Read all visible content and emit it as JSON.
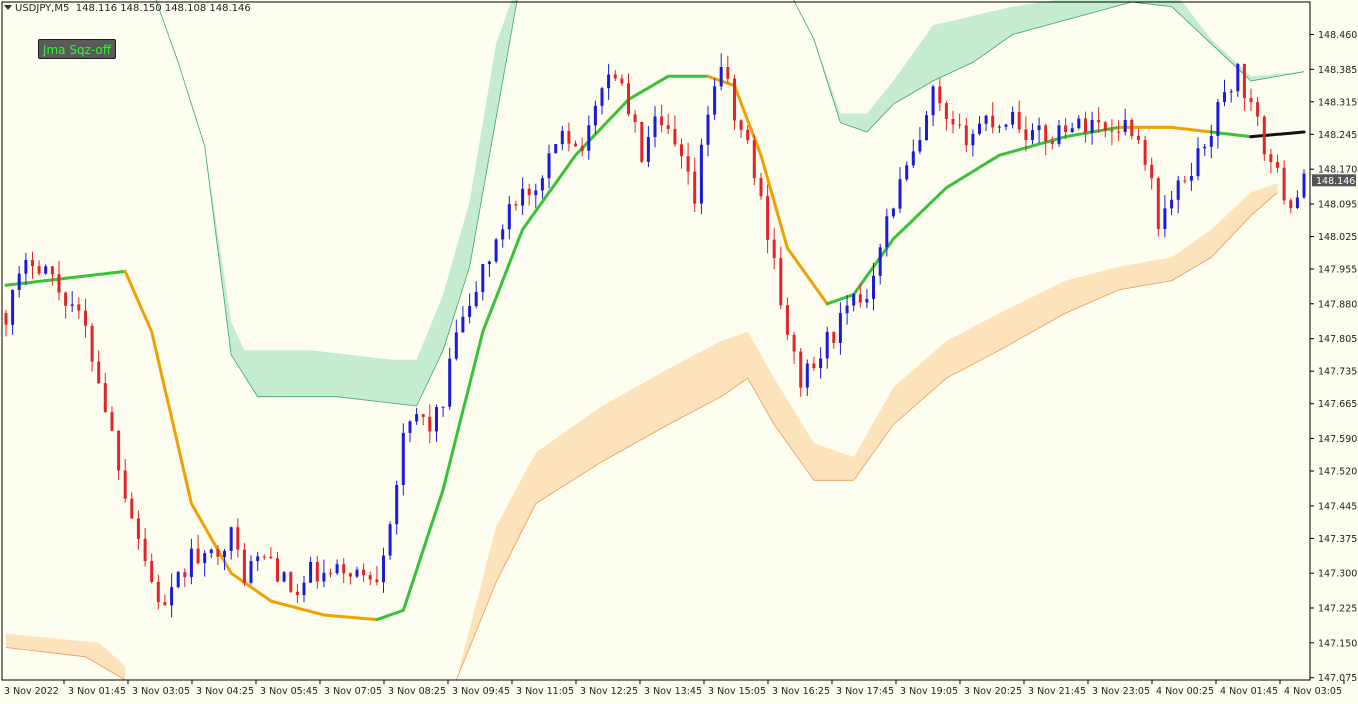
{
  "window": {
    "symbol": "USDJPY,M5",
    "ohlc": "148.116 148.150 148.108 148.146"
  },
  "indicator_button": {
    "label": "Jma Sqz-off",
    "text_color": "#22ff22",
    "bg_color": "#5a5a5a"
  },
  "colors": {
    "background": "#fdfdf0",
    "bull_candle": "#1c1cd8",
    "bear_candle": "#e0242a",
    "ma_up": "#38c238",
    "ma_down": "#f0a000",
    "ma_flat": "#111111",
    "upper_band": "#bfeacb",
    "lower_band": "#fde0b6",
    "price_tag_bg": "#555555"
  },
  "chart_data": {
    "type": "candlestick",
    "symbol": "USDJPY",
    "timeframe": "M5",
    "ylim": [
      147.07,
      148.53
    ],
    "y_ticks": [
      "148.460",
      "148.385",
      "148.315",
      "148.245",
      "148.170",
      "148.095",
      "148.025",
      "147.955",
      "147.880",
      "147.805",
      "147.735",
      "147.665",
      "147.590",
      "147.520",
      "147.445",
      "147.375",
      "147.300",
      "147.225",
      "147.150",
      "147.075"
    ],
    "x_ticks": [
      "3 Nov 2022",
      "3 Nov 01:45",
      "3 Nov 03:05",
      "3 Nov 04:25",
      "3 Nov 05:45",
      "3 Nov 07:05",
      "3 Nov 08:25",
      "3 Nov 09:45",
      "3 Nov 11:05",
      "3 Nov 12:25",
      "3 Nov 13:45",
      "3 Nov 15:05",
      "3 Nov 16:25",
      "3 Nov 17:45",
      "3 Nov 19:05",
      "3 Nov 20:25",
      "3 Nov 21:45",
      "3 Nov 23:05",
      "4 Nov 00:25",
      "4 Nov 01:45",
      "4 Nov 03:05"
    ],
    "current_price": "148.146",
    "close_path": [
      [
        0,
        147.86
      ],
      [
        2,
        147.93
      ],
      [
        4,
        147.98
      ],
      [
        6,
        147.96
      ],
      [
        8,
        147.91
      ],
      [
        10,
        147.88
      ],
      [
        12,
        147.82
      ],
      [
        14,
        147.72
      ],
      [
        16,
        147.6
      ],
      [
        18,
        147.48
      ],
      [
        20,
        147.38
      ],
      [
        22,
        147.28
      ],
      [
        24,
        147.22
      ],
      [
        26,
        147.28
      ],
      [
        28,
        147.34
      ],
      [
        30,
        147.32
      ],
      [
        32,
        147.36
      ],
      [
        34,
        147.38
      ],
      [
        36,
        147.3
      ],
      [
        38,
        147.33
      ],
      [
        40,
        147.33
      ],
      [
        42,
        147.28
      ],
      [
        44,
        147.25
      ],
      [
        46,
        147.3
      ],
      [
        48,
        147.29
      ],
      [
        50,
        147.3
      ],
      [
        52,
        147.31
      ],
      [
        54,
        147.29
      ],
      [
        56,
        147.3
      ],
      [
        58,
        147.42
      ],
      [
        60,
        147.58
      ],
      [
        62,
        147.64
      ],
      [
        64,
        147.62
      ],
      [
        66,
        147.66
      ],
      [
        68,
        147.82
      ],
      [
        70,
        147.86
      ],
      [
        72,
        147.96
      ],
      [
        74,
        148.0
      ],
      [
        76,
        148.1
      ],
      [
        78,
        148.12
      ],
      [
        80,
        148.1
      ],
      [
        82,
        148.18
      ],
      [
        84,
        148.27
      ],
      [
        86,
        148.22
      ],
      [
        88,
        148.24
      ],
      [
        90,
        148.36
      ],
      [
        92,
        148.38
      ],
      [
        94,
        148.3
      ],
      [
        96,
        148.2
      ],
      [
        98,
        148.26
      ],
      [
        100,
        148.24
      ],
      [
        102,
        148.18
      ],
      [
        104,
        148.1
      ],
      [
        106,
        148.3
      ],
      [
        108,
        148.4
      ],
      [
        110,
        148.28
      ],
      [
        112,
        148.22
      ],
      [
        114,
        148.1
      ],
      [
        116,
        147.98
      ],
      [
        118,
        147.8
      ],
      [
        120,
        147.72
      ],
      [
        122,
        147.74
      ],
      [
        124,
        147.8
      ],
      [
        126,
        147.84
      ],
      [
        128,
        147.88
      ],
      [
        130,
        147.9
      ],
      [
        132,
        148.02
      ],
      [
        134,
        148.1
      ],
      [
        136,
        148.17
      ],
      [
        138,
        148.22
      ],
      [
        140,
        148.33
      ],
      [
        142,
        148.26
      ],
      [
        144,
        148.24
      ],
      [
        146,
        148.25
      ],
      [
        148,
        148.28
      ],
      [
        150,
        148.27
      ],
      [
        152,
        148.29
      ],
      [
        154,
        148.25
      ],
      [
        156,
        148.24
      ],
      [
        158,
        148.24
      ],
      [
        160,
        148.27
      ],
      [
        162,
        148.26
      ],
      [
        164,
        148.28
      ],
      [
        166,
        148.25
      ],
      [
        168,
        148.27
      ],
      [
        170,
        148.26
      ],
      [
        172,
        148.2
      ],
      [
        174,
        148.06
      ],
      [
        176,
        148.1
      ],
      [
        178,
        148.15
      ],
      [
        180,
        148.2
      ],
      [
        182,
        148.26
      ],
      [
        184,
        148.33
      ],
      [
        186,
        148.38
      ],
      [
        188,
        148.3
      ],
      [
        190,
        148.22
      ],
      [
        192,
        148.15
      ],
      [
        194,
        148.1
      ],
      [
        196,
        148.14
      ]
    ],
    "ma_segments": [
      {
        "state": "up",
        "points": [
          [
            0,
            147.92
          ],
          [
            18,
            147.95
          ]
        ]
      },
      {
        "state": "down",
        "points": [
          [
            18,
            147.95
          ],
          [
            22,
            147.82
          ],
          [
            28,
            147.45
          ],
          [
            34,
            147.3
          ],
          [
            40,
            147.24
          ],
          [
            48,
            147.21
          ],
          [
            56,
            147.2
          ]
        ]
      },
      {
        "state": "up",
        "points": [
          [
            56,
            147.2
          ],
          [
            60,
            147.22
          ],
          [
            66,
            147.48
          ],
          [
            72,
            147.82
          ],
          [
            78,
            148.04
          ],
          [
            86,
            148.2
          ],
          [
            94,
            148.32
          ],
          [
            100,
            148.37
          ],
          [
            106,
            148.37
          ]
        ]
      },
      {
        "state": "down",
        "points": [
          [
            106,
            148.37
          ],
          [
            110,
            148.35
          ],
          [
            114,
            148.2
          ],
          [
            118,
            148.0
          ],
          [
            124,
            147.88
          ]
        ]
      },
      {
        "state": "up",
        "points": [
          [
            124,
            147.88
          ],
          [
            128,
            147.9
          ],
          [
            134,
            148.02
          ],
          [
            142,
            148.13
          ],
          [
            150,
            148.2
          ],
          [
            160,
            148.24
          ],
          [
            168,
            148.26
          ]
        ]
      },
      {
        "state": "down",
        "points": [
          [
            168,
            148.26
          ],
          [
            176,
            148.26
          ],
          [
            182,
            148.25
          ]
        ]
      },
      {
        "state": "up",
        "points": [
          [
            182,
            148.25
          ],
          [
            188,
            148.24
          ]
        ]
      },
      {
        "state": "flat",
        "points": [
          [
            188,
            148.24
          ],
          [
            196,
            148.25
          ]
        ]
      }
    ],
    "upper_band": {
      "outer": [
        [
          22,
          148.56
        ],
        [
          26,
          148.4
        ],
        [
          30,
          148.22
        ],
        [
          34,
          147.84
        ],
        [
          36,
          147.78
        ],
        [
          40,
          147.78
        ],
        [
          46,
          147.78
        ],
        [
          52,
          147.77
        ],
        [
          58,
          147.76
        ],
        [
          62,
          147.76
        ],
        [
          66,
          147.9
        ],
        [
          70,
          148.1
        ],
        [
          74,
          148.44
        ],
        [
          78,
          148.6
        ]
      ],
      "inner": [
        [
          22,
          148.56
        ],
        [
          26,
          148.4
        ],
        [
          30,
          148.22
        ],
        [
          34,
          147.77
        ],
        [
          38,
          147.68
        ],
        [
          44,
          147.68
        ],
        [
          50,
          147.68
        ],
        [
          56,
          147.67
        ],
        [
          62,
          147.66
        ],
        [
          66,
          147.78
        ],
        [
          70,
          147.96
        ],
        [
          74,
          148.28
        ],
        [
          78,
          148.6
        ]
      ]
    },
    "upper_band_2": {
      "outer": [
        [
          118,
          148.56
        ],
        [
          122,
          148.45
        ],
        [
          126,
          148.29
        ],
        [
          130,
          148.29
        ],
        [
          134,
          148.36
        ],
        [
          140,
          148.48
        ],
        [
          146,
          148.5
        ],
        [
          152,
          148.52
        ],
        [
          170,
          148.56
        ],
        [
          176,
          148.56
        ],
        [
          182,
          148.45
        ],
        [
          188,
          148.37
        ],
        [
          196,
          148.38
        ]
      ],
      "inner": [
        [
          118,
          148.56
        ],
        [
          122,
          148.45
        ],
        [
          126,
          148.27
        ],
        [
          130,
          148.25
        ],
        [
          134,
          148.31
        ],
        [
          140,
          148.36
        ],
        [
          146,
          148.4
        ],
        [
          152,
          148.46
        ],
        [
          170,
          148.53
        ],
        [
          176,
          148.52
        ],
        [
          182,
          148.44
        ],
        [
          188,
          148.36
        ],
        [
          196,
          148.38
        ]
      ]
    },
    "lower_band": {
      "outer": [
        [
          0,
          147.17
        ],
        [
          14,
          147.15
        ],
        [
          18,
          147.1
        ]
      ],
      "inner": [
        [
          0,
          147.14
        ],
        [
          12,
          147.12
        ],
        [
          18,
          147.07
        ]
      ]
    },
    "lower_band_2": {
      "outer": [
        [
          68,
          147.07
        ],
        [
          74,
          147.4
        ],
        [
          80,
          147.56
        ],
        [
          90,
          147.66
        ],
        [
          100,
          147.74
        ],
        [
          108,
          147.8
        ],
        [
          112,
          147.82
        ],
        [
          116,
          147.72
        ],
        [
          122,
          147.58
        ],
        [
          128,
          147.55
        ],
        [
          134,
          147.7
        ],
        [
          142,
          147.8
        ],
        [
          150,
          147.86
        ],
        [
          160,
          147.93
        ],
        [
          168,
          147.96
        ],
        [
          176,
          147.98
        ],
        [
          182,
          148.04
        ],
        [
          188,
          148.12
        ],
        [
          192,
          148.14
        ]
      ],
      "inner": [
        [
          68,
          147.07
        ],
        [
          74,
          147.28
        ],
        [
          80,
          147.45
        ],
        [
          90,
          147.54
        ],
        [
          100,
          147.62
        ],
        [
          108,
          147.68
        ],
        [
          112,
          147.72
        ],
        [
          116,
          147.62
        ],
        [
          122,
          147.5
        ],
        [
          128,
          147.5
        ],
        [
          134,
          147.62
        ],
        [
          142,
          147.72
        ],
        [
          150,
          147.78
        ],
        [
          160,
          147.86
        ],
        [
          168,
          147.91
        ],
        [
          176,
          147.93
        ],
        [
          182,
          147.98
        ],
        [
          188,
          148.07
        ],
        [
          192,
          148.12
        ]
      ]
    }
  }
}
